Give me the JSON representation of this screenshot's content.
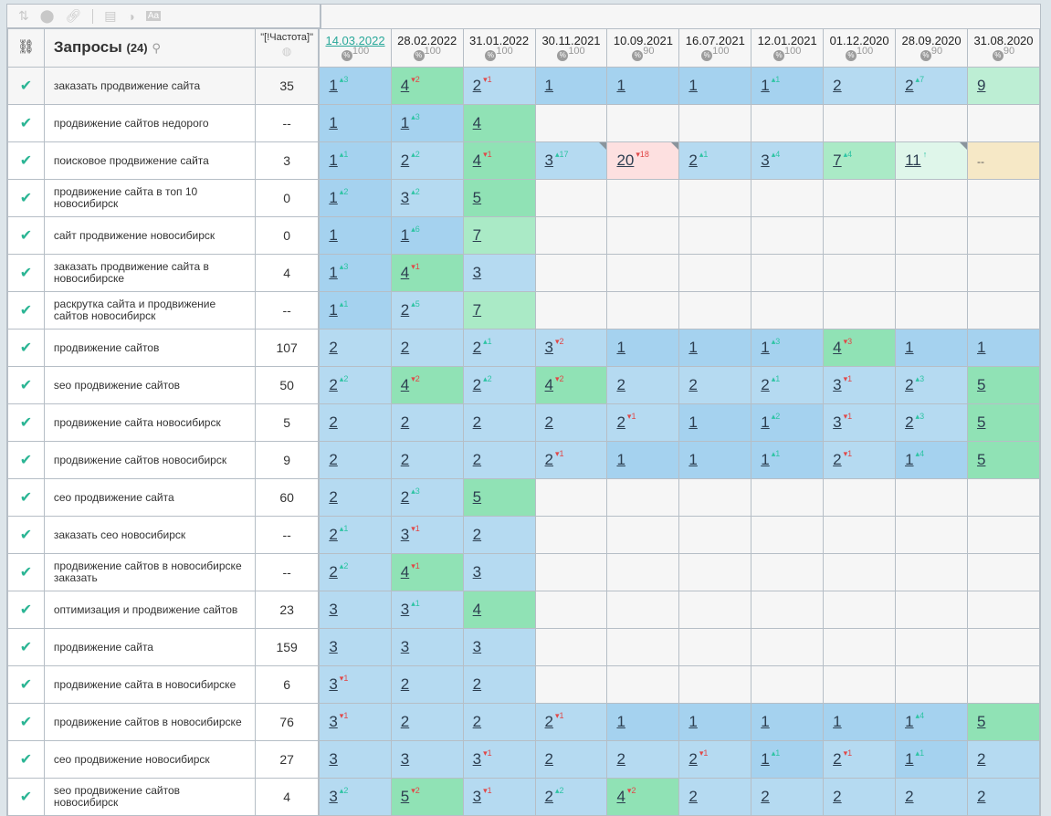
{
  "toolbar": {
    "icons": [
      "sort-icon",
      "toggle-icon",
      "link-icon",
      "table-icon",
      "contrast-icon",
      "font-icon"
    ]
  },
  "header": {
    "link_icon": "link-icon",
    "queries_label": "Запросы",
    "queries_count": "(24)",
    "search_icon": "search-icon",
    "freq_label": "\"[!Частота]\"",
    "globe_icon": "globe-icon",
    "pct_symbol": "%"
  },
  "dates": [
    {
      "date": "14.03.2022",
      "pct": "100",
      "active": true
    },
    {
      "date": "28.02.2022",
      "pct": "100"
    },
    {
      "date": "31.01.2022",
      "pct": "100"
    },
    {
      "date": "30.11.2021",
      "pct": "100"
    },
    {
      "date": "10.09.2021",
      "pct": "90"
    },
    {
      "date": "16.07.2021",
      "pct": "100"
    },
    {
      "date": "12.01.2021",
      "pct": "100"
    },
    {
      "date": "01.12.2020",
      "pct": "100"
    },
    {
      "date": "28.09.2020",
      "pct": "90"
    },
    {
      "date": "31.08.2020",
      "pct": "90"
    }
  ],
  "colors": {
    "pos1": "#a5d2ef",
    "pos2_3": "#b5daf1",
    "pos4_5": "#90e2b5",
    "pos6_7": "#aaeac6",
    "pos8_10": "#bdeed4",
    "pos11_15": "#dff6ea",
    "pos16_plus": "#fde0e0",
    "dash": "#f6e8c6",
    "empty": "#f6f6f6",
    "up": "#2ec4a4",
    "down": "#e04848",
    "check": "#2bb594"
  },
  "rows": [
    {
      "query": "заказать продвижение сайта",
      "freq": "35",
      "cells": [
        [
          1,
          3
        ],
        [
          4,
          -2
        ],
        [
          2,
          -1
        ],
        [
          1
        ],
        [
          1
        ],
        [
          1
        ],
        [
          1,
          1
        ],
        [
          2
        ],
        [
          2,
          7
        ],
        [
          9
        ]
      ]
    },
    {
      "query": "продвижение сайтов недорого",
      "freq": "--",
      "cells": [
        [
          1
        ],
        [
          1,
          3
        ],
        [
          4
        ],
        null,
        null,
        null,
        null,
        null,
        null,
        null
      ]
    },
    {
      "query": "поисковое продвижение сайта",
      "freq": "3",
      "cells": [
        [
          1,
          1
        ],
        [
          2,
          2
        ],
        [
          4,
          -1
        ],
        [
          3,
          17,
          "f"
        ],
        [
          20,
          -18,
          "f"
        ],
        [
          2,
          1
        ],
        [
          3,
          4
        ],
        [
          7,
          4
        ],
        [
          11,
          "↑",
          "f"
        ],
        [
          "--"
        ]
      ]
    },
    {
      "query": "продвижение сайта в топ 10 новосибирск",
      "freq": "0",
      "cells": [
        [
          1,
          2
        ],
        [
          3,
          2
        ],
        [
          5
        ],
        null,
        null,
        null,
        null,
        null,
        null,
        null
      ]
    },
    {
      "query": "сайт продвижение новосибирск",
      "freq": "0",
      "cells": [
        [
          1
        ],
        [
          1,
          6
        ],
        [
          7
        ],
        null,
        null,
        null,
        null,
        null,
        null,
        null
      ]
    },
    {
      "query": "заказать продвижение сайта в новосибирске",
      "freq": "4",
      "cells": [
        [
          1,
          3
        ],
        [
          4,
          -1
        ],
        [
          3
        ],
        null,
        null,
        null,
        null,
        null,
        null,
        null
      ]
    },
    {
      "query": "раскрутка сайта и продвижение сайтов новосибирск",
      "freq": "--",
      "cells": [
        [
          1,
          1
        ],
        [
          2,
          5
        ],
        [
          7
        ],
        null,
        null,
        null,
        null,
        null,
        null,
        null
      ]
    },
    {
      "query": "продвижение сайтов",
      "freq": "107",
      "cells": [
        [
          2
        ],
        [
          2
        ],
        [
          2,
          1
        ],
        [
          3,
          -2
        ],
        [
          1
        ],
        [
          1
        ],
        [
          1,
          3
        ],
        [
          4,
          -3
        ],
        [
          1
        ],
        [
          1
        ]
      ]
    },
    {
      "query": "seo продвижение сайтов",
      "freq": "50",
      "cells": [
        [
          2,
          2
        ],
        [
          4,
          -2
        ],
        [
          2,
          2
        ],
        [
          4,
          -2
        ],
        [
          2
        ],
        [
          2
        ],
        [
          2,
          1
        ],
        [
          3,
          -1
        ],
        [
          2,
          3
        ],
        [
          5
        ]
      ]
    },
    {
      "query": "продвижение сайта новосибирск",
      "freq": "5",
      "cells": [
        [
          2
        ],
        [
          2
        ],
        [
          2
        ],
        [
          2
        ],
        [
          2,
          -1
        ],
        [
          1
        ],
        [
          1,
          2
        ],
        [
          3,
          -1
        ],
        [
          2,
          3
        ],
        [
          5
        ]
      ]
    },
    {
      "query": "продвижение сайтов новосибирск",
      "freq": "9",
      "cells": [
        [
          2
        ],
        [
          2
        ],
        [
          2
        ],
        [
          2,
          -1
        ],
        [
          1
        ],
        [
          1
        ],
        [
          1,
          1
        ],
        [
          2,
          -1
        ],
        [
          1,
          4
        ],
        [
          5
        ]
      ]
    },
    {
      "query": "сео продвижение сайта",
      "freq": "60",
      "cells": [
        [
          2
        ],
        [
          2,
          3
        ],
        [
          5
        ],
        null,
        null,
        null,
        null,
        null,
        null,
        null
      ]
    },
    {
      "query": "заказать сео новосибирск",
      "freq": "--",
      "cells": [
        [
          2,
          1
        ],
        [
          3,
          -1
        ],
        [
          2
        ],
        null,
        null,
        null,
        null,
        null,
        null,
        null
      ]
    },
    {
      "query": "продвижение сайтов в новосибирске заказать",
      "freq": "--",
      "cells": [
        [
          2,
          2
        ],
        [
          4,
          -1
        ],
        [
          3
        ],
        null,
        null,
        null,
        null,
        null,
        null,
        null
      ]
    },
    {
      "query": "оптимизация и продвижение сайтов",
      "freq": "23",
      "cells": [
        [
          3
        ],
        [
          3,
          1
        ],
        [
          4
        ],
        null,
        null,
        null,
        null,
        null,
        null,
        null
      ]
    },
    {
      "query": "продвижение сайта",
      "freq": "159",
      "cells": [
        [
          3
        ],
        [
          3
        ],
        [
          3
        ],
        null,
        null,
        null,
        null,
        null,
        null,
        null
      ]
    },
    {
      "query": "продвижение сайта в новосибирске",
      "freq": "6",
      "cells": [
        [
          3,
          -1
        ],
        [
          2
        ],
        [
          2
        ],
        null,
        null,
        null,
        null,
        null,
        null,
        null
      ]
    },
    {
      "query": "продвижение сайтов в новосибирске",
      "freq": "76",
      "cells": [
        [
          3,
          -1
        ],
        [
          2
        ],
        [
          2
        ],
        [
          2,
          -1
        ],
        [
          1
        ],
        [
          1
        ],
        [
          1
        ],
        [
          1
        ],
        [
          1,
          4
        ],
        [
          5
        ]
      ]
    },
    {
      "query": "сео продвижение новосибирск",
      "freq": "27",
      "cells": [
        [
          3
        ],
        [
          3
        ],
        [
          3,
          -1
        ],
        [
          2
        ],
        [
          2
        ],
        [
          2,
          -1
        ],
        [
          1,
          1
        ],
        [
          2,
          -1
        ],
        [
          1,
          1
        ],
        [
          2
        ]
      ]
    },
    {
      "query": "seo продвижение сайтов новосибирск",
      "freq": "4",
      "cells": [
        [
          3,
          2
        ],
        [
          5,
          -2
        ],
        [
          3,
          -1
        ],
        [
          2,
          2
        ],
        [
          4,
          -2
        ],
        [
          2
        ],
        [
          2
        ],
        [
          2
        ],
        [
          2
        ],
        [
          2
        ]
      ]
    }
  ]
}
